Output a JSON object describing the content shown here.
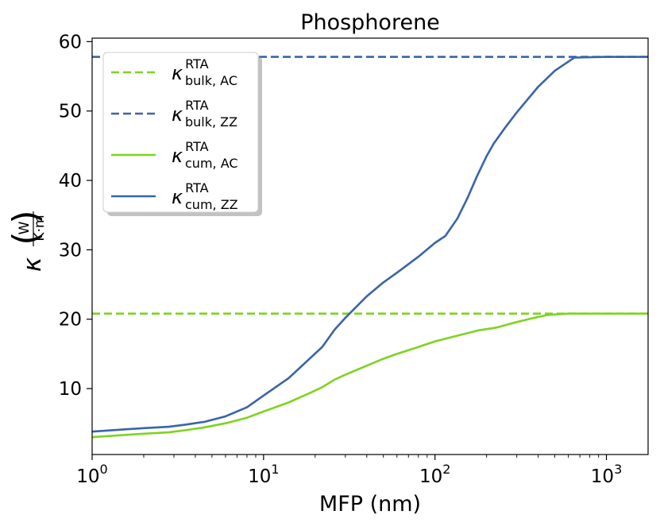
{
  "chart_data": {
    "type": "line",
    "title": "Phosphorene",
    "xlabel": "MFP (nm)",
    "ylabel": "κ",
    "ylabel_unit": {
      "numerator": "W",
      "denominator": "K·m"
    },
    "x_scale": "log",
    "xlim": [
      1,
      1750
    ],
    "ylim": [
      0.5,
      60.5
    ],
    "x_ticks": [
      {
        "value": 1,
        "base": "10",
        "exp": "0"
      },
      {
        "value": 10,
        "base": "10",
        "exp": "1"
      },
      {
        "value": 100,
        "base": "10",
        "exp": "2"
      },
      {
        "value": 1000,
        "base": "10",
        "exp": "3"
      }
    ],
    "y_ticks": [
      10,
      20,
      30,
      40,
      50,
      60
    ],
    "legend_position": "top-left",
    "series": [
      {
        "name": "bulk_AC",
        "label_main": "κ",
        "label_sup": "RTA",
        "label_sub": "bulk, AC",
        "color": "#7ed321",
        "style": "dashed",
        "x": [
          1,
          1750
        ],
        "y": [
          20.8,
          20.8
        ]
      },
      {
        "name": "bulk_ZZ",
        "label_main": "κ",
        "label_sup": "RTA",
        "label_sub": "bulk, ZZ",
        "color": "#3a64a8",
        "style": "dashed",
        "x": [
          1,
          1750
        ],
        "y": [
          57.8,
          57.8
        ]
      },
      {
        "name": "cum_AC",
        "label_main": "κ",
        "label_sup": "RTA",
        "label_sub": "cum, AC",
        "color": "#7ed321",
        "style": "solid",
        "x": [
          1,
          1.5,
          2,
          2.8,
          3.5,
          4.5,
          6,
          8,
          10,
          14,
          18,
          22,
          26,
          30,
          40,
          50,
          60,
          80,
          100,
          120,
          150,
          180,
          230,
          280,
          350,
          450,
          600,
          1000,
          1750
        ],
        "y": [
          3.0,
          3.3,
          3.5,
          3.7,
          4.0,
          4.4,
          5.0,
          5.8,
          6.7,
          8.0,
          9.2,
          10.2,
          11.3,
          12.0,
          13.3,
          14.3,
          15.0,
          16.0,
          16.8,
          17.3,
          17.9,
          18.4,
          18.8,
          19.4,
          20.0,
          20.6,
          20.8,
          20.8,
          20.8
        ]
      },
      {
        "name": "cum_ZZ",
        "label_main": "κ",
        "label_sup": "RTA",
        "label_sub": "cum, ZZ",
        "color": "#3a64a8",
        "style": "solid",
        "x": [
          1,
          1.5,
          2,
          2.8,
          3.5,
          4.5,
          6,
          8,
          10,
          14,
          18,
          22,
          26,
          30,
          40,
          50,
          60,
          80,
          100,
          115,
          135,
          155,
          175,
          200,
          220,
          260,
          300,
          400,
          500,
          650,
          1000,
          1750
        ],
        "y": [
          3.8,
          4.1,
          4.3,
          4.5,
          4.8,
          5.2,
          6.0,
          7.3,
          9.0,
          11.5,
          14.0,
          16.0,
          18.5,
          20.2,
          23.3,
          25.3,
          26.7,
          29.0,
          31.0,
          32.0,
          34.5,
          37.5,
          40.5,
          43.5,
          45.3,
          47.8,
          49.8,
          53.5,
          55.8,
          57.7,
          57.8,
          57.8
        ]
      }
    ]
  }
}
